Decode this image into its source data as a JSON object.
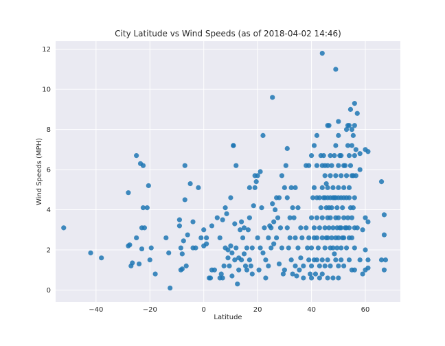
{
  "chart_data": {
    "type": "scatter",
    "title": "City Latitude vs Wind Speeds (as of 2018-04-02 14:46)",
    "xlabel": "Latitude",
    "ylabel": "Wind Speeds (MPH)",
    "xlim": [
      -55,
      73
    ],
    "ylim": [
      -0.6,
      12.4
    ],
    "xticks": [
      -40,
      -20,
      0,
      20,
      40,
      60
    ],
    "yticks": [
      0,
      2,
      4,
      6,
      8,
      10,
      12
    ],
    "grid": true,
    "marker_color": "#1f77b4",
    "plot_background": "#eaeaf2",
    "series": [
      {
        "points": [
          [
            -52,
            3.1
          ],
          [
            -42,
            1.85
          ],
          [
            -38,
            1.6
          ],
          [
            -28,
            4.85
          ],
          [
            -28,
            2.2
          ],
          [
            -27.5,
            2.25
          ],
          [
            -27,
            1.2
          ],
          [
            -26.5,
            1.35
          ],
          [
            -25,
            6.7
          ],
          [
            -25,
            2.6
          ],
          [
            -24,
            1.3
          ],
          [
            -23.5,
            6.3
          ],
          [
            -23,
            2.05
          ],
          [
            -23,
            3.1
          ],
          [
            -22.5,
            6.2
          ],
          [
            -22.5,
            4.1
          ],
          [
            -22,
            3.1
          ],
          [
            -21,
            4.1
          ],
          [
            -20.5,
            5.2
          ],
          [
            -20,
            1.5
          ],
          [
            -19.5,
            2.1
          ],
          [
            -18,
            0.8
          ],
          [
            -14,
            2.6
          ],
          [
            -13,
            1.85
          ],
          [
            -12.5,
            0.1
          ],
          [
            -9,
            3.5
          ],
          [
            -9,
            3.2
          ],
          [
            -8.5,
            2.1
          ],
          [
            -8.5,
            1.0
          ],
          [
            -8,
            1.05
          ],
          [
            -8,
            1.8
          ],
          [
            -7.5,
            2.45
          ],
          [
            -7,
            6.2
          ],
          [
            -7,
            4.5
          ],
          [
            -6.5,
            1.2
          ],
          [
            -6,
            2.75
          ],
          [
            -5,
            5.3
          ],
          [
            -4,
            3.4
          ],
          [
            -4,
            2.1
          ],
          [
            -3,
            2.1
          ],
          [
            -2,
            5.1
          ],
          [
            -1,
            2.6
          ],
          [
            0,
            3.0
          ],
          [
            0,
            2.2
          ],
          [
            1,
            2.3
          ],
          [
            1,
            2.6
          ],
          [
            2,
            0.6
          ],
          [
            2.5,
            0.6
          ],
          [
            3,
            3.2
          ],
          [
            3,
            1.0
          ],
          [
            4,
            1.0
          ],
          [
            5,
            3.6
          ],
          [
            6,
            2.6
          ],
          [
            6,
            0.6
          ],
          [
            6.5,
            0.8
          ],
          [
            7,
            3.5
          ],
          [
            7,
            0.6
          ],
          [
            7.5,
            1.2
          ],
          [
            8,
            4.1
          ],
          [
            8,
            2.1
          ],
          [
            8.5,
            3.8
          ],
          [
            9,
            2.0
          ],
          [
            9,
            1.6
          ],
          [
            9.5,
            1.2
          ],
          [
            10,
            4.6
          ],
          [
            10,
            2.2
          ],
          [
            10.5,
            1.85
          ],
          [
            10.5,
            0.7
          ],
          [
            11,
            7.2
          ],
          [
            11,
            7.2
          ],
          [
            11.5,
            3.3
          ],
          [
            11.5,
            1.5
          ],
          [
            12,
            6.2
          ],
          [
            12,
            2.1
          ],
          [
            12.5,
            0.3
          ],
          [
            13,
            1.6
          ],
          [
            13,
            1.0
          ],
          [
            13.5,
            3.0
          ],
          [
            14,
            3.4
          ],
          [
            14,
            1.5
          ],
          [
            14.5,
            2.6
          ],
          [
            15,
            3.1
          ],
          [
            15,
            1.8
          ],
          [
            15.5,
            1.2
          ],
          [
            16,
            2.1
          ],
          [
            16,
            1.0
          ],
          [
            16.5,
            3.0
          ],
          [
            17,
            5.1
          ],
          [
            17,
            3.6
          ],
          [
            17,
            1.5
          ],
          [
            17.5,
            1.2
          ],
          [
            18,
            2.1
          ],
          [
            18,
            0.8
          ],
          [
            18.5,
            4.2
          ],
          [
            19,
            5.7
          ],
          [
            19,
            5.1
          ],
          [
            19.5,
            5.4
          ],
          [
            20,
            5.7
          ],
          [
            20,
            2.6
          ],
          [
            20.5,
            1.0
          ],
          [
            21,
            5.9
          ],
          [
            21,
            2.1
          ],
          [
            21.5,
            4.1
          ],
          [
            22,
            7.7
          ],
          [
            22,
            1.85
          ],
          [
            22.5,
            3.1
          ],
          [
            23,
            0.6
          ],
          [
            23,
            1.5
          ],
          [
            24,
            2.6
          ],
          [
            24,
            1.2
          ],
          [
            24.5,
            3.2
          ],
          [
            25,
            3.1
          ],
          [
            25,
            2.1
          ],
          [
            25.5,
            9.6
          ],
          [
            25.5,
            4.3
          ],
          [
            26,
            3.4
          ],
          [
            26,
            2.3
          ],
          [
            26.5,
            4.0
          ],
          [
            27,
            4.6
          ],
          [
            27,
            2.6
          ],
          [
            27.5,
            3.6
          ],
          [
            28,
            4.6
          ],
          [
            28,
            1.3
          ],
          [
            28.5,
            3.1
          ],
          [
            29,
            5.7
          ],
          [
            29,
            2.1
          ],
          [
            29.5,
            0.8
          ],
          [
            30,
            5.1
          ],
          [
            30,
            1.0
          ],
          [
            30.5,
            6.2
          ],
          [
            31,
            7.05
          ],
          [
            31,
            4.6
          ],
          [
            31,
            3.1
          ],
          [
            31.5,
            2.1
          ],
          [
            32,
            3.6
          ],
          [
            32,
            2.6
          ],
          [
            32.5,
            5.1
          ],
          [
            32.5,
            1.5
          ],
          [
            33,
            4.1
          ],
          [
            33,
            0.8
          ],
          [
            33.5,
            3.6
          ],
          [
            34,
            5.1
          ],
          [
            34,
            2.6
          ],
          [
            34,
            1.2
          ],
          [
            34.5,
            0.7
          ],
          [
            35,
            4.1
          ],
          [
            35,
            2.1
          ],
          [
            35.5,
            1.0
          ],
          [
            36,
            3.1
          ],
          [
            36,
            1.6
          ],
          [
            36.5,
            2.6
          ],
          [
            37,
            1.2
          ],
          [
            37,
            0.6
          ],
          [
            38,
            6.2
          ],
          [
            38,
            3.1
          ],
          [
            38.5,
            2.1
          ],
          [
            39,
            6.2
          ],
          [
            39,
            2.6
          ],
          [
            39,
            1.5
          ],
          [
            39.5,
            0.8
          ],
          [
            40,
            6.7
          ],
          [
            40,
            3.6
          ],
          [
            40,
            2.1
          ],
          [
            40,
            1.2
          ],
          [
            40,
            0.6
          ],
          [
            40.5,
            4.6
          ],
          [
            41,
            7.2
          ],
          [
            41,
            5.1
          ],
          [
            41,
            3.1
          ],
          [
            41,
            2.6
          ],
          [
            41,
            1.5
          ],
          [
            41.5,
            0.8
          ],
          [
            42,
            7.7
          ],
          [
            42,
            6.2
          ],
          [
            42,
            4.6
          ],
          [
            42,
            3.6
          ],
          [
            42,
            2.6
          ],
          [
            42,
            1.5
          ],
          [
            42.5,
            2.1
          ],
          [
            43,
            4.6
          ],
          [
            43,
            3.1
          ],
          [
            43,
            1.2
          ],
          [
            43,
            0.6
          ],
          [
            43.5,
            6.7
          ],
          [
            43.5,
            4.1
          ],
          [
            44,
            11.8
          ],
          [
            44,
            6.2
          ],
          [
            44,
            5.1
          ],
          [
            44,
            3.6
          ],
          [
            44,
            2.6
          ],
          [
            44,
            1.5
          ],
          [
            44,
            0.8
          ],
          [
            44.5,
            6.7
          ],
          [
            44.5,
            4.6
          ],
          [
            45,
            6.2
          ],
          [
            45,
            5.7
          ],
          [
            45,
            4.6
          ],
          [
            45,
            3.1
          ],
          [
            45,
            2.1
          ],
          [
            45,
            1.2
          ],
          [
            45.5,
            5.3
          ],
          [
            45.5,
            4.1
          ],
          [
            45.5,
            2.6
          ],
          [
            46,
            8.2
          ],
          [
            46,
            6.2
          ],
          [
            46,
            5.1
          ],
          [
            46,
            4.6
          ],
          [
            46,
            3.6
          ],
          [
            46,
            2.6
          ],
          [
            46,
            1.5
          ],
          [
            46,
            0.6
          ],
          [
            46.5,
            8.2
          ],
          [
            46.5,
            4.1
          ],
          [
            46.5,
            3.1
          ],
          [
            47,
            6.7
          ],
          [
            47,
            5.7
          ],
          [
            47,
            4.6
          ],
          [
            47,
            3.6
          ],
          [
            47,
            2.1
          ],
          [
            47,
            1.2
          ],
          [
            47.5,
            6.2
          ],
          [
            47.5,
            4.1
          ],
          [
            47.5,
            2.6
          ],
          [
            48,
            5.1
          ],
          [
            48,
            4.6
          ],
          [
            48,
            3.1
          ],
          [
            48,
            2.1
          ],
          [
            48,
            0.6
          ],
          [
            48.5,
            6.7
          ],
          [
            48.5,
            4.6
          ],
          [
            48.5,
            1.8
          ],
          [
            49,
            11.0
          ],
          [
            49,
            7.2
          ],
          [
            49,
            5.7
          ],
          [
            49,
            4.6
          ],
          [
            49,
            3.6
          ],
          [
            49,
            2.6
          ],
          [
            49,
            1.5
          ],
          [
            49.5,
            4.1
          ],
          [
            49.5,
            3.1
          ],
          [
            49.5,
            2.1
          ],
          [
            50,
            8.4
          ],
          [
            50,
            7.7
          ],
          [
            50,
            6.2
          ],
          [
            50,
            5.1
          ],
          [
            50,
            4.6
          ],
          [
            50,
            3.6
          ],
          [
            50,
            2.6
          ],
          [
            50,
            1.2
          ],
          [
            50,
            0.6
          ],
          [
            50.5,
            6.7
          ],
          [
            50.5,
            3.1
          ],
          [
            51,
            6.7
          ],
          [
            51,
            5.7
          ],
          [
            51,
            4.6
          ],
          [
            51,
            3.1
          ],
          [
            51,
            2.1
          ],
          [
            51,
            1.5
          ],
          [
            51.5,
            4.1
          ],
          [
            51.5,
            2.6
          ],
          [
            52,
            6.2
          ],
          [
            52,
            5.1
          ],
          [
            52,
            4.6
          ],
          [
            52,
            3.6
          ],
          [
            52,
            2.6
          ],
          [
            52,
            1.2
          ],
          [
            52.5,
            6.2
          ],
          [
            52.5,
            3.1
          ],
          [
            53,
            8.0
          ],
          [
            53,
            5.7
          ],
          [
            53,
            4.6
          ],
          [
            53,
            3.1
          ],
          [
            53,
            2.1
          ],
          [
            53.5,
            8.2
          ],
          [
            53.5,
            7.2
          ],
          [
            53.5,
            3.6
          ],
          [
            54,
            8.2
          ],
          [
            54,
            6.7
          ],
          [
            54,
            5.1
          ],
          [
            54,
            4.6
          ],
          [
            54,
            3.1
          ],
          [
            54,
            2.6
          ],
          [
            54,
            1.5
          ],
          [
            54.5,
            9.0
          ],
          [
            54.5,
            6.2
          ],
          [
            54.5,
            4.1
          ],
          [
            55,
            8.0
          ],
          [
            55,
            7.2
          ],
          [
            55,
            5.7
          ],
          [
            55,
            3.6
          ],
          [
            55,
            2.6
          ],
          [
            55,
            1.0
          ],
          [
            55.5,
            7.7
          ],
          [
            55.5,
            5.7
          ],
          [
            55.5,
            4.1
          ],
          [
            56,
            9.3
          ],
          [
            56,
            8.2
          ],
          [
            56,
            6.7
          ],
          [
            56,
            4.6
          ],
          [
            56,
            3.1
          ],
          [
            56,
            2.1
          ],
          [
            56,
            1.0
          ],
          [
            56.5,
            7.0
          ],
          [
            56.5,
            5.7
          ],
          [
            57,
            8.8
          ],
          [
            57,
            3.1
          ],
          [
            58,
            6.8
          ],
          [
            58,
            6.0
          ],
          [
            58,
            1.5
          ],
          [
            59,
            3.0
          ],
          [
            59,
            0.8
          ],
          [
            60,
            7.0
          ],
          [
            60,
            3.6
          ],
          [
            60,
            2.0
          ],
          [
            60,
            1.0
          ],
          [
            61,
            6.9
          ],
          [
            61,
            3.4
          ],
          [
            61,
            1.5
          ],
          [
            61,
            1.1
          ],
          [
            66,
            5.4
          ],
          [
            66,
            1.5
          ],
          [
            67,
            3.75
          ],
          [
            67,
            2.75
          ],
          [
            67,
            1.0
          ],
          [
            67.5,
            1.5
          ]
        ]
      }
    ]
  }
}
